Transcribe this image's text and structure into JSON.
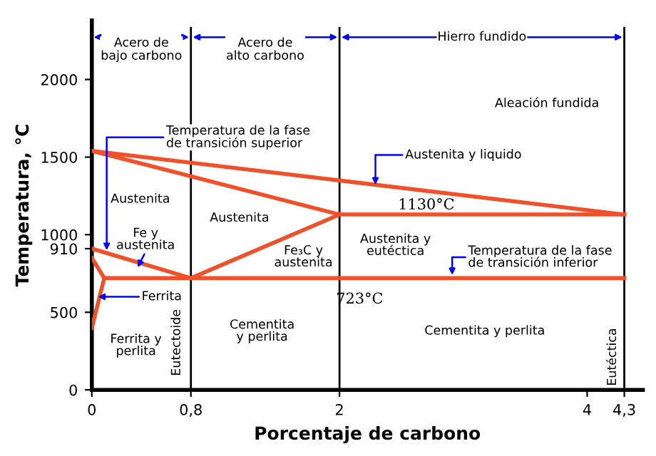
{
  "chart_data": {
    "type": "line",
    "xlabel": "Porcentaje de carbono",
    "ylabel": "Temperatura, °C",
    "xlim": [
      0,
      4.45
    ],
    "ylim": [
      0,
      2380
    ],
    "xticks": [
      0,
      {
        "value": 0.8,
        "label": "0,8"
      },
      2,
      4,
      {
        "value": 4.3,
        "label": "4,3"
      }
    ],
    "yticks": [
      0,
      500,
      910,
      1000,
      1500,
      2000
    ],
    "marker": "none",
    "line_style": "solid",
    "series": [
      {
        "color": "#f0502a",
        "x": [
          0,
          4.3
        ],
        "values": [
          1540,
          1130
        ]
      },
      {
        "color": "#f0502a",
        "x": [
          0,
          2,
          4.3
        ],
        "values": [
          1540,
          1130,
          1130
        ]
      },
      {
        "color": "#f0502a",
        "x": [
          0,
          0.8,
          2
        ],
        "values": [
          910,
          720,
          1130
        ]
      },
      {
        "color": "#f0502a",
        "x": [
          0.1,
          4.3
        ],
        "values": [
          720,
          720
        ]
      },
      {
        "color": "#f0502a",
        "x": [
          0,
          0.1
        ],
        "values": [
          850,
          720
        ]
      },
      {
        "color": "#f0502a",
        "x": [
          0,
          0.1
        ],
        "values": [
          400,
          720
        ]
      }
    ],
    "ref_lines": [
      {
        "axis": "x",
        "value": 0.8,
        "color": "#000000"
      },
      {
        "axis": "x",
        "value": 2,
        "color": "#000000"
      },
      {
        "axis": "x",
        "value": 4.3,
        "color": "#000000"
      }
    ],
    "annotations": [
      {
        "text": "Temperatura de la fase\nde transición superior",
        "x": 0.12,
        "y": 900
      },
      {
        "text": "Austenita y liquido",
        "x": 2.29,
        "y": 1322
      },
      {
        "text": "Temperatura de la fase\nde transición inferior",
        "x": 2.91,
        "y": 740
      },
      {
        "text": "Ferrita",
        "x": 0.05,
        "y": 600
      },
      {
        "text": "Fe y\naustenita",
        "x": 0.37,
        "y": 790
      },
      "Acero de\nbajo carbono",
      "Acero de\nalto carbono",
      "Hierro fundido",
      "Austenita",
      "Austenita",
      "Fe₃C y\naustenita",
      "Ferrita y\nperlita",
      "Cementita\ny perlita",
      "Cementita y perlita",
      "Austenita y\neutéctica",
      "Aleación fundida",
      "Eutectoide",
      "Eutéctica",
      "1130°C",
      "723°C"
    ]
  }
}
